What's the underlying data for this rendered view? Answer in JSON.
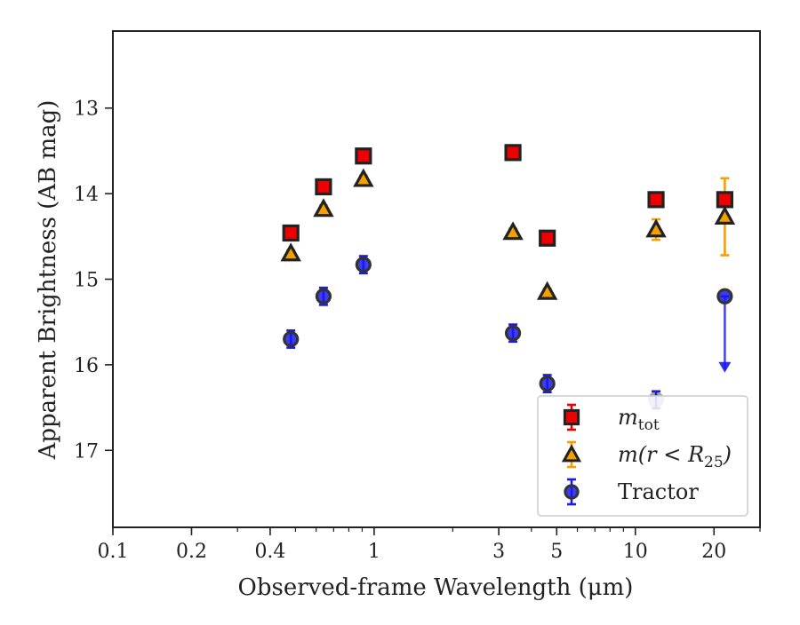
{
  "chart_data": {
    "type": "scatter",
    "xlabel": "Observed-frame Wavelength (μm)",
    "ylabel": "Apparent Brightness (AB mag)",
    "xscale": "log",
    "xlim": [
      0.1,
      30
    ],
    "ylim": [
      17.9,
      12.1
    ],
    "y_inverted": true,
    "xticks": [
      {
        "value": 0.1,
        "label": "0.1"
      },
      {
        "value": 0.2,
        "label": "0.2"
      },
      {
        "value": 0.4,
        "label": "0.4"
      },
      {
        "value": 1,
        "label": "1"
      },
      {
        "value": 3,
        "label": "3"
      },
      {
        "value": 5,
        "label": "5"
      },
      {
        "value": 10,
        "label": "10"
      },
      {
        "value": 20,
        "label": "20"
      }
    ],
    "yticks": [
      {
        "value": 13,
        "label": "13"
      },
      {
        "value": 14,
        "label": "14"
      },
      {
        "value": 15,
        "label": "15"
      },
      {
        "value": 16,
        "label": "16"
      },
      {
        "value": 17,
        "label": "17"
      }
    ],
    "grid": false,
    "legend_position": "lower-right",
    "series": [
      {
        "name": "m_tot",
        "legend_main": "m",
        "legend_sub": "tot",
        "marker": "square",
        "color": "#ee0000",
        "edge_color": "#222222",
        "error_color": "#ee0000",
        "points": [
          {
            "x": 0.48,
            "y": 14.46,
            "err": 0.08
          },
          {
            "x": 0.64,
            "y": 13.92,
            "err": 0.07
          },
          {
            "x": 0.91,
            "y": 13.56,
            "err": 0.07
          },
          {
            "x": 3.4,
            "y": 13.52,
            "err": 0.07
          },
          {
            "x": 4.6,
            "y": 14.52,
            "err": 0.07
          },
          {
            "x": 12.0,
            "y": 14.07,
            "err": 0.07
          },
          {
            "x": 22.0,
            "y": 14.07,
            "err": 0.07
          }
        ]
      },
      {
        "name": "m(r < R_25)",
        "legend_main": "m(r < R",
        "legend_sub": "25",
        "legend_tail": ")",
        "marker": "triangle",
        "color": "#f5a000",
        "edge_color": "#222222",
        "error_color": "#f5a000",
        "points": [
          {
            "x": 0.48,
            "y": 14.7,
            "err": 0.04
          },
          {
            "x": 0.64,
            "y": 14.18,
            "err": 0.04
          },
          {
            "x": 0.91,
            "y": 13.83,
            "err": 0.04
          },
          {
            "x": 3.4,
            "y": 14.45,
            "err": 0.04
          },
          {
            "x": 4.6,
            "y": 15.15,
            "err": 0.04
          },
          {
            "x": 12.0,
            "y": 14.42,
            "err": 0.12
          },
          {
            "x": 22.0,
            "y": 14.27,
            "err": 0.45
          }
        ]
      },
      {
        "name": "Tractor",
        "legend_main": "Tractor",
        "marker": "circle",
        "color": "#1a1aee",
        "edge_color": "#333333",
        "error_color": "#1a1aee",
        "points": [
          {
            "x": 0.48,
            "y": 15.7,
            "err": 0.1
          },
          {
            "x": 0.64,
            "y": 15.2,
            "err": 0.1
          },
          {
            "x": 0.91,
            "y": 14.83,
            "err": 0.1
          },
          {
            "x": 3.4,
            "y": 15.63,
            "err": 0.1
          },
          {
            "x": 4.6,
            "y": 16.22,
            "err": 0.1
          },
          {
            "x": 12.0,
            "y": 16.41,
            "err": 0.1
          },
          {
            "x": 22.0,
            "y": 15.2,
            "err": 0,
            "upper_limit_to": 16.05
          }
        ]
      }
    ]
  }
}
